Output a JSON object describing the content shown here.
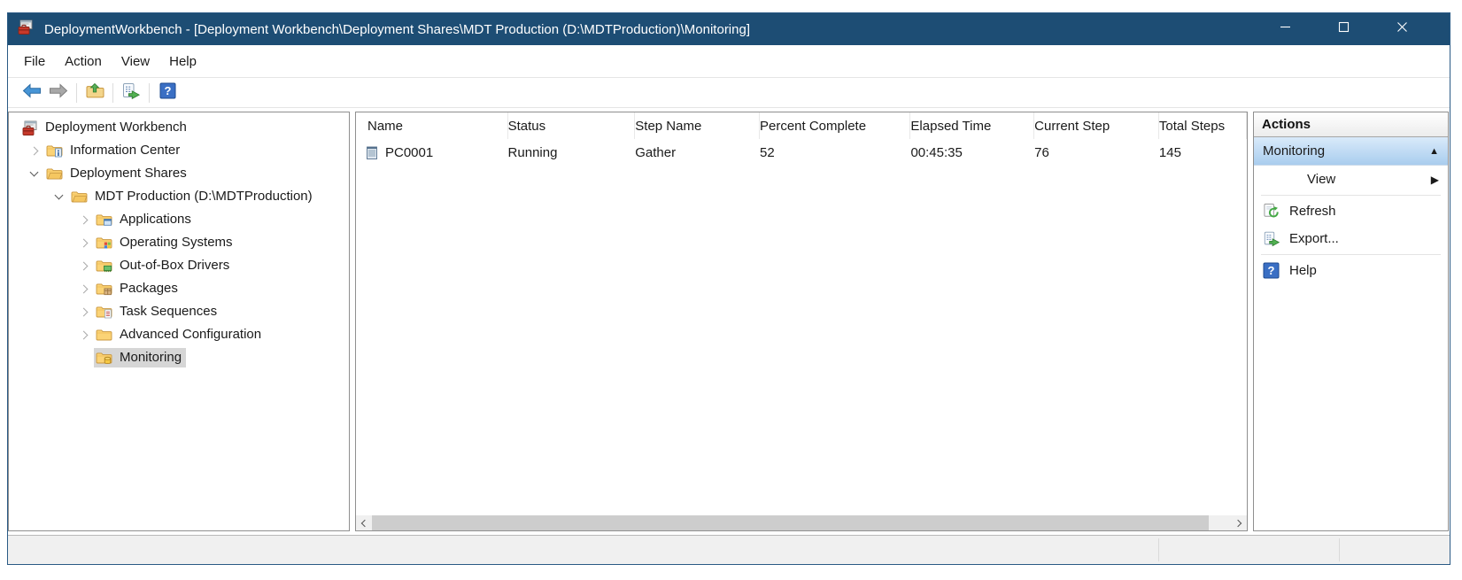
{
  "window": {
    "title": "DeploymentWorkbench - [Deployment Workbench\\Deployment Shares\\MDT Production (D:\\MDTProduction)\\Monitoring]",
    "app_icon": "mdt-workbench-icon",
    "controls": [
      {
        "name": "minimize",
        "icon": "minimize-icon"
      },
      {
        "name": "maximize",
        "icon": "maximize-icon"
      },
      {
        "name": "close",
        "icon": "close-icon"
      }
    ]
  },
  "menu": {
    "items": [
      {
        "label": "File"
      },
      {
        "label": "Action"
      },
      {
        "label": "View"
      },
      {
        "label": "Help"
      }
    ]
  },
  "toolbar": {
    "buttons": [
      {
        "icon": "back-icon"
      },
      {
        "icon": "forward-icon"
      },
      {
        "icon": "folder-up-icon"
      },
      {
        "icon": "export-list-icon"
      },
      {
        "icon": "help-icon"
      }
    ]
  },
  "tree": {
    "items": [
      {
        "label": "Deployment Workbench",
        "depth": 0,
        "expand": "none",
        "icon": "workbench-icon",
        "selected": false
      },
      {
        "label": "Information Center",
        "depth": 1,
        "expand": "collapsed",
        "icon": "folder-info-icon",
        "selected": false
      },
      {
        "label": "Deployment Shares",
        "depth": 1,
        "expand": "expanded",
        "icon": "folder-shares-icon",
        "selected": false
      },
      {
        "label": "MDT Production (D:\\MDTProduction)",
        "depth": 2,
        "expand": "expanded",
        "icon": "folder-shares-icon",
        "selected": false
      },
      {
        "label": "Applications",
        "depth": 3,
        "expand": "collapsed",
        "icon": "folder-apps-icon",
        "selected": false
      },
      {
        "label": "Operating Systems",
        "depth": 3,
        "expand": "collapsed",
        "icon": "folder-os-icon",
        "selected": false
      },
      {
        "label": "Out-of-Box Drivers",
        "depth": 3,
        "expand": "collapsed",
        "icon": "folder-drivers-icon",
        "selected": false
      },
      {
        "label": "Packages",
        "depth": 3,
        "expand": "collapsed",
        "icon": "folder-packages-icon",
        "selected": false
      },
      {
        "label": "Task Sequences",
        "depth": 3,
        "expand": "collapsed",
        "icon": "folder-tasks-icon",
        "selected": false
      },
      {
        "label": "Advanced Configuration",
        "depth": 3,
        "expand": "collapsed",
        "icon": "folder-plain-icon",
        "selected": false
      },
      {
        "label": "Monitoring",
        "depth": 3,
        "expand": "none",
        "icon": "folder-monitoring-icon",
        "selected": true
      }
    ]
  },
  "table": {
    "columns": [
      "Name",
      "Status",
      "Step Name",
      "Percent Complete",
      "Elapsed Time",
      "Current Step",
      "Total Steps"
    ],
    "rows": [
      {
        "icon": "computer-icon",
        "name": "PC0001",
        "status": "Running",
        "step_name": "Gather",
        "percent_complete": "52",
        "elapsed_time": "00:45:35",
        "current_step": "76",
        "total_steps": "145"
      }
    ]
  },
  "actions": {
    "header": "Actions",
    "group_label": "Monitoring",
    "collapse_glyph": "▲",
    "items": [
      {
        "label": "View",
        "submenu_glyph": "▶",
        "icon": null
      },
      {
        "label": "Refresh",
        "icon": "refresh-icon"
      },
      {
        "label": "Export...",
        "icon": "export-list-icon"
      },
      {
        "label": "Help",
        "icon": "help-icon"
      }
    ]
  },
  "colors": {
    "titlebar": "#1d4d74",
    "action_selected_top": "#d9eafa",
    "action_selected_bottom": "#a9cdee",
    "statusbar": "#f0f0f0",
    "tree_selection": "#d6d6d6"
  }
}
